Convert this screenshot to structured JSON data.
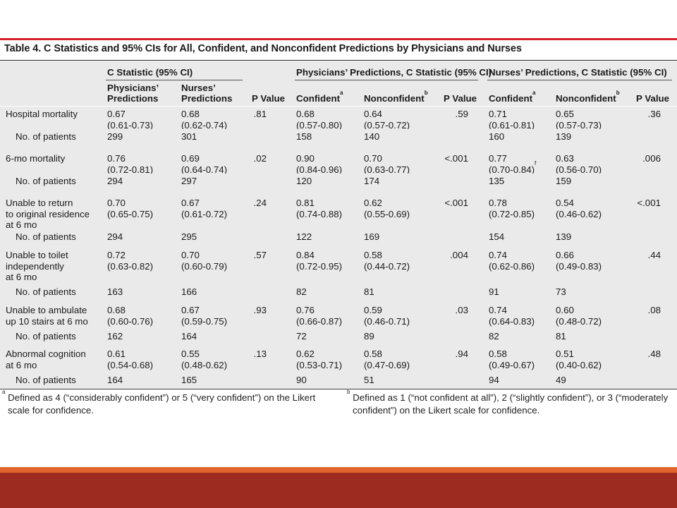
{
  "title": "Table 4. C Statistics and 95% CIs for All, Confident, and Nonconfident Predictions by Physicians and Nurses",
  "header": {
    "group_c_stat": "C Statistic (95% CI)",
    "group_phys": "Physicians’ Predictions, C Statistic (95% CI)",
    "group_nurse": "Nurses’ Predictions, C Statistic (95% CI)",
    "col_phys_pred_1": "Physicians’",
    "col_phys_pred_2": "Predictions",
    "col_nurse_pred_1": "Nurses’",
    "col_nurse_pred_2": "Predictions",
    "col_p_value": "P Value",
    "col_confident": "Confident",
    "col_nonconfident": "Nonconfident",
    "sup_a": "a",
    "sup_b": "b"
  },
  "rows": [
    {
      "label": [
        "Hospital mortality"
      ],
      "v": [
        [
          "0.67",
          "(0.61-0.73)"
        ],
        [
          "0.68",
          "(0.62-0.74)"
        ],
        [
          ".81"
        ],
        [
          "0.68",
          "(0.57-0.80)"
        ],
        [
          "0.64",
          "(0.57-0.72)"
        ],
        [
          ".59"
        ],
        [
          "0.71",
          "(0.61-0.81)"
        ],
        [
          "0.65",
          "(0.57-0.73)"
        ],
        [
          ".36"
        ]
      ]
    },
    {
      "label": [
        "No. of patients"
      ],
      "v": [
        [
          "299"
        ],
        [
          "301"
        ],
        [
          ""
        ],
        [
          "158"
        ],
        [
          "140"
        ],
        [
          ""
        ],
        [
          "160"
        ],
        [
          "139"
        ],
        [
          ""
        ]
      ]
    },
    {
      "label": [
        "6-mo mortality"
      ],
      "v": [
        [
          "0.76",
          "(0.72-0.81)"
        ],
        [
          "0.69",
          "(0.64-0.74)"
        ],
        [
          ".02"
        ],
        [
          "0.90",
          "(0.84-0.96)"
        ],
        [
          "0.70",
          "(0.63-0.77)"
        ],
        [
          "<.001"
        ],
        [
          "0.77",
          "(0.70-0.84)"
        ],
        [
          "0.63",
          "(0.56-0.70)"
        ],
        [
          ".006"
        ]
      ]
    },
    {
      "label": [
        "No. of patients"
      ],
      "v": [
        [
          "294"
        ],
        [
          "297"
        ],
        [
          ""
        ],
        [
          "120"
        ],
        [
          "174"
        ],
        [
          ""
        ],
        [
          "135"
        ],
        [
          "159"
        ],
        [
          ""
        ]
      ]
    },
    {
      "label": [
        "Unable to return",
        "to original residence",
        "at 6 mo"
      ],
      "v": [
        [
          "0.70",
          "(0.65-0.75)"
        ],
        [
          "0.67",
          "(0.61-0.72)"
        ],
        [
          ".24"
        ],
        [
          "0.81",
          "(0.74-0.88)"
        ],
        [
          "0.62",
          "(0.55-0.69)"
        ],
        [
          "<.001"
        ],
        [
          "0.78",
          "(0.72-0.85)"
        ],
        [
          "0.54",
          "(0.46-0.62)"
        ],
        [
          "<.001"
        ]
      ]
    },
    {
      "label": [
        "No. of patients"
      ],
      "v": [
        [
          "294"
        ],
        [
          "295"
        ],
        [
          ""
        ],
        [
          "122"
        ],
        [
          "169"
        ],
        [
          ""
        ],
        [
          "154"
        ],
        [
          "139"
        ],
        [
          ""
        ]
      ]
    },
    {
      "label": [
        "Unable to toilet",
        "independently",
        "at 6 mo"
      ],
      "v": [
        [
          "0.72",
          "(0.63-0.82)"
        ],
        [
          "0.70",
          "(0.60-0.79)"
        ],
        [
          ".57"
        ],
        [
          "0.84",
          "(0.72-0.95)"
        ],
        [
          "0.58",
          "(0.44-0.72)"
        ],
        [
          ".004"
        ],
        [
          "0.74",
          "(0.62-0.86)"
        ],
        [
          "0.66",
          "(0.49-0.83)"
        ],
        [
          ".44"
        ]
      ]
    },
    {
      "label": [
        "No. of patients"
      ],
      "v": [
        [
          "163"
        ],
        [
          "166"
        ],
        [
          ""
        ],
        [
          "82"
        ],
        [
          "81"
        ],
        [
          ""
        ],
        [
          "91"
        ],
        [
          "73"
        ],
        [
          ""
        ]
      ]
    },
    {
      "label": [
        "Unable to ambulate",
        "up 10 stairs at 6 mo"
      ],
      "v": [
        [
          "0.68",
          "(0.60-0.76)"
        ],
        [
          "0.67",
          "(0.59-0.75)"
        ],
        [
          ".93"
        ],
        [
          "0.76",
          "(0.66-0.87)"
        ],
        [
          "0.59",
          "(0.46-0.71)"
        ],
        [
          ".03"
        ],
        [
          "0.74",
          "(0.64-0.83)"
        ],
        [
          "0.60",
          "(0.48-0.72)"
        ],
        [
          ".08"
        ]
      ]
    },
    {
      "label": [
        "No. of patients"
      ],
      "v": [
        [
          "162"
        ],
        [
          "164"
        ],
        [
          ""
        ],
        [
          "72"
        ],
        [
          "89"
        ],
        [
          ""
        ],
        [
          "82"
        ],
        [
          "81"
        ],
        [
          ""
        ]
      ]
    },
    {
      "label": [
        "Abnormal cognition",
        "at 6 mo"
      ],
      "v": [
        [
          "0.61",
          "(0.54-0.68)"
        ],
        [
          "0.55",
          "(0.48-0.62)"
        ],
        [
          ".13"
        ],
        [
          "0.62",
          "(0.53-0.71)"
        ],
        [
          "0.58",
          "(0.47-0.69)"
        ],
        [
          ".94"
        ],
        [
          "0.58",
          "(0.49-0.67)"
        ],
        [
          "0.51",
          "(0.40-0.62)"
        ],
        [
          ".48"
        ]
      ]
    },
    {
      "label": [
        "No. of patients"
      ],
      "v": [
        [
          "164"
        ],
        [
          "165"
        ],
        [
          ""
        ],
        [
          "90"
        ],
        [
          "51"
        ],
        [
          ""
        ],
        [
          "94"
        ],
        [
          "49"
        ],
        [
          ""
        ]
      ]
    }
  ],
  "sup_f": "f",
  "footnote_a_mark": "a",
  "footnote_a_line1": "Defined as 4 (“considerably confident”) or 5 (“very confident”) on the Likert",
  "footnote_a_line2": "scale for confidence.",
  "footnote_b_mark": "b",
  "footnote_b_line1": "Defined as 1 (“not confident at all”), 2 (“slightly confident”), or 3 (“moderately",
  "footnote_b_line2": "confident”) on the Likert scale for confidence."
}
